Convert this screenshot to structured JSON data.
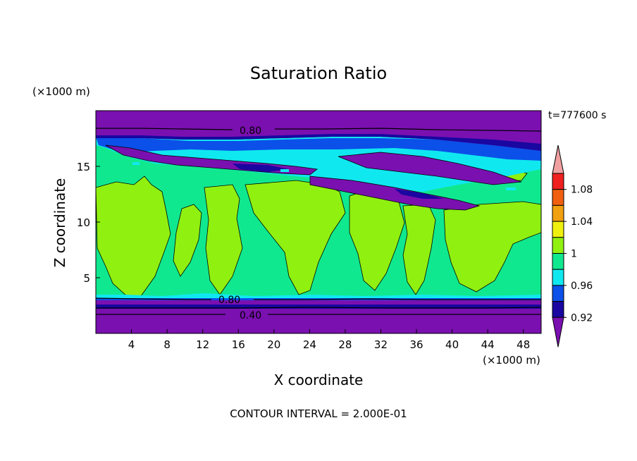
{
  "chart_data": {
    "type": "heatmap",
    "title": "Saturation Ratio",
    "xlabel": "X coordinate",
    "ylabel": "Z coordinate",
    "x_unit": "(×1000 m)",
    "y_unit": "(×1000 m)",
    "time_label": "t=777600 s",
    "footer": "CONTOUR INTERVAL = 2.000E-01",
    "xlim": [
      0,
      50
    ],
    "ylim": [
      0,
      20
    ],
    "x_ticks": [
      4,
      8,
      12,
      16,
      20,
      24,
      28,
      32,
      36,
      40,
      44,
      48
    ],
    "y_ticks": [
      5,
      10,
      15
    ],
    "contour_labels": [
      "0.80",
      "0.80",
      "0.40"
    ],
    "colorbar": {
      "levels": [
        0.92,
        0.94,
        0.96,
        0.98,
        1.0,
        1.02,
        1.04,
        1.06,
        1.08,
        1.1
      ],
      "tick_labels": [
        "0.92",
        "0.96",
        "1",
        "1.04",
        "1.08"
      ],
      "colors": [
        "#7a10b0",
        "#1a06a0",
        "#0b50e8",
        "#10e8f0",
        "#10e890",
        "#90f010",
        "#f0f010",
        "#f0a010",
        "#f06010",
        "#f02020",
        "#f0a0a0"
      ]
    },
    "grid": false
  }
}
